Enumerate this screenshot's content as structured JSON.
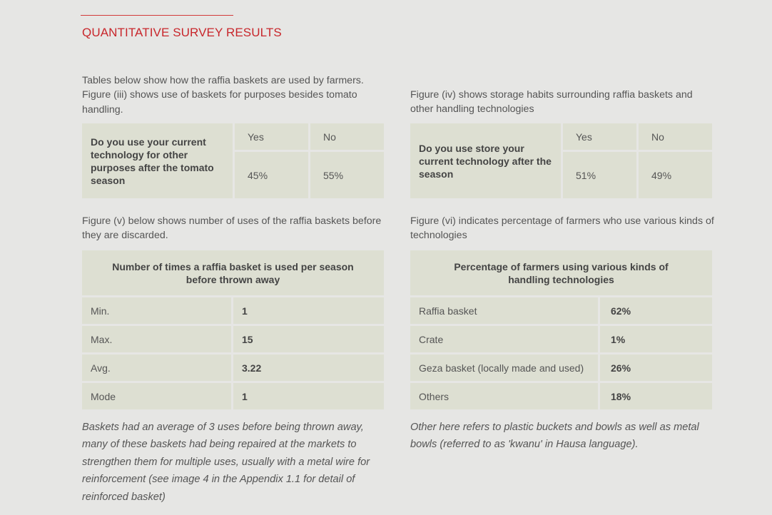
{
  "heading": "QUANTITATIVE SURVEY RESULTS",
  "intro_left": "Tables below show how the raffia baskets are used by farmers. Figure (iii) shows use of baskets for purposes besides tomato handling.",
  "intro_right": "Figure (iv) shows storage habits surrounding raffia baskets and other handling technologies",
  "table_other_purposes": {
    "question": "Do you use your current technology for other purposes after the tomato season",
    "yes_label": "Yes",
    "no_label": "No",
    "yes_value": "45%",
    "no_value": "55%"
  },
  "table_storage": {
    "question": "Do you use store your current technology after the season",
    "yes_label": "Yes",
    "no_label": "No",
    "yes_value": "51%",
    "no_value": "49%"
  },
  "fig_v_caption": "Figure (v) below shows number of uses of the raffia baskets before they are discarded.",
  "fig_vi_caption": "Figure (vi) indicates percentage of farmers who use various kinds of technologies",
  "table_uses": {
    "title": "Number of times a raffia basket is used per season before thrown away",
    "rows": [
      {
        "label": "Min.",
        "value": "1"
      },
      {
        "label": "Max.",
        "value": "15"
      },
      {
        "label": "Avg.",
        "value": "3.22"
      },
      {
        "label": "Mode",
        "value": "1"
      }
    ]
  },
  "table_technologies": {
    "title": "Percentage of farmers using various kinds of handling technologies",
    "rows": [
      {
        "label": "Raffia basket",
        "value": "62%"
      },
      {
        "label": "Crate",
        "value": "1%"
      },
      {
        "label": "Geza basket (locally made and used)",
        "value": "26%"
      },
      {
        "label": "Others",
        "value": "18%"
      }
    ]
  },
  "note_left": "Baskets had an average of 3 uses  before being thrown away, many of these baskets had being repaired at the markets to strengthen them for multiple uses, usually with a metal wire for reinforcement (see image 4 in the Appendix 1.1 for detail of reinforced basket)",
  "note_right": "Other here refers to plastic buckets and bowls as well as metal bowls (referred to as 'kwanu' in Hausa language)."
}
